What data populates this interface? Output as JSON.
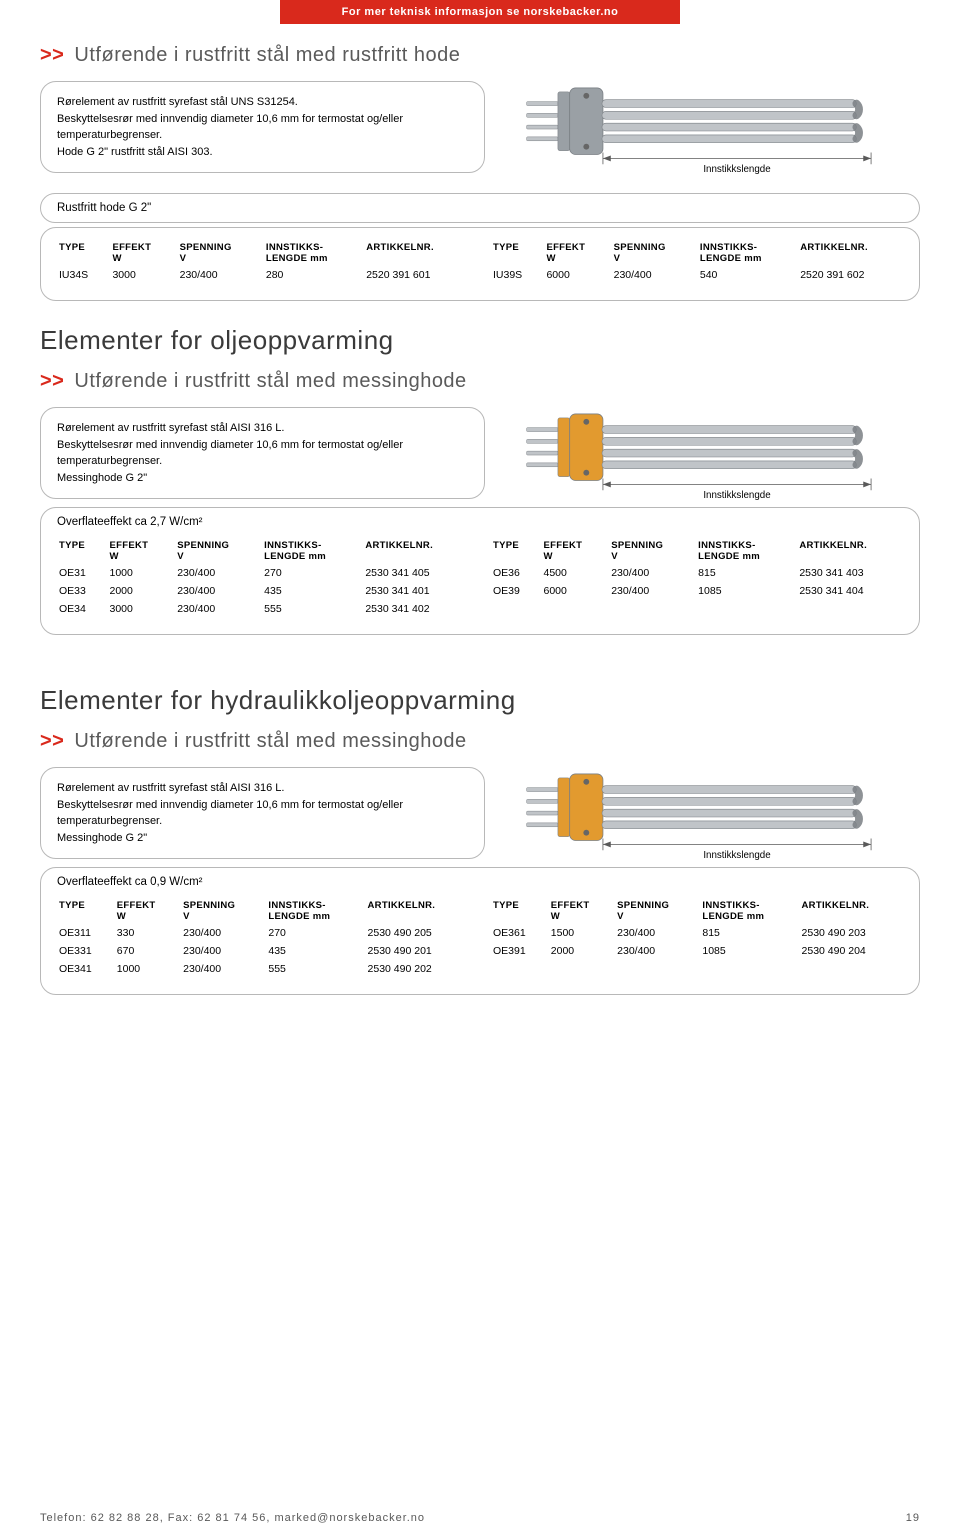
{
  "top_banner": "For mer teknisk informasjon se norskebacker.no",
  "sec1": {
    "heading": "Utførende i rustfritt stål med rustfritt hode",
    "desc1": "Rørelement av rustfritt syrefast stål UNS S31254.",
    "desc2": "Beskyttelsesrør med innvendig diameter 10,6 mm for termostat og/eller temperaturbegrenser.",
    "desc3": "Hode G 2\" rustfritt stål AISI 303.",
    "diagram_label": "Innstikkslengde",
    "sublabel": "Rustfritt hode G 2\"",
    "rows_left": [
      [
        "IU34S",
        "3000",
        "230/400",
        "280",
        "2520 391 601"
      ]
    ],
    "rows_right": [
      [
        "IU39S",
        "6000",
        "230/400",
        "540",
        "2520 391 602"
      ]
    ]
  },
  "sec2": {
    "main": "Elementer for oljeoppvarming",
    "heading": "Utførende i rustfritt stål med messinghode",
    "desc1": "Rørelement av rustfritt syrefast stål  AISI 316 L.",
    "desc2": "Beskyttelsesrør med innvendig diameter 10,6 mm for termostat og/eller temperaturbegrenser.",
    "desc3": "Messinghode G 2\"",
    "diagram_label": "Innstikkslengde",
    "sublabel": "Overflateeffekt ca 2,7 W/cm²",
    "rows_left": [
      [
        "OE31",
        "1000",
        "230/400",
        "270",
        "2530 341 405"
      ],
      [
        "OE33",
        "2000",
        "230/400",
        "435",
        "2530 341 401"
      ],
      [
        "OE34",
        "3000",
        "230/400",
        "555",
        "2530 341 402"
      ]
    ],
    "rows_right": [
      [
        "OE36",
        "4500",
        "230/400",
        "815",
        "2530 341 403"
      ],
      [
        "OE39",
        "6000",
        "230/400",
        "1085",
        "2530 341 404"
      ]
    ]
  },
  "sec3": {
    "main": "Elementer for hydraulikkoljeoppvarming",
    "heading": "Utførende i rustfritt stål med messinghode",
    "desc1": "Rørelement av rustfritt syrefast stål  AISI 316 L.",
    "desc2": "Beskyttelsesrør med innvendig diameter 10,6 mm for termostat og/eller temperaturbegrenser.",
    "desc3": "Messinghode G 2\"",
    "diagram_label": "Innstikkslengde",
    "sublabel": "Overflateeffekt ca 0,9 W/cm²",
    "rows_left": [
      [
        "OE311",
        "330",
        "230/400",
        "270",
        "2530 490 205"
      ],
      [
        "OE331",
        "670",
        "230/400",
        "435",
        "2530 490 201"
      ],
      [
        "OE341",
        "1000",
        "230/400",
        "555",
        "2530 490 202"
      ]
    ],
    "rows_right": [
      [
        "OE361",
        "1500",
        "230/400",
        "815",
        "2530 490 203"
      ],
      [
        "OE391",
        "2000",
        "230/400",
        "1085",
        "2530 490 204"
      ]
    ]
  },
  "headers": {
    "type": "TYPE",
    "effekt": "EFFEKT",
    "effekt_sub": "W",
    "spenning": "SPENNING",
    "spenning_sub": "V",
    "innstikks": "INNSTIKKS-",
    "innstikks_sub": "LENGDE mm",
    "art": "ARTIKKELNR."
  },
  "footer": {
    "contact": "Telefon: 62 82 88 28, Fax: 62 81 74 56, marked@norskebacker.no",
    "page": "19"
  },
  "diagram": {
    "flange_fill_steel": "#9aa0a5",
    "flange_fill_brass": "#e29a2f",
    "rod_fill": "#c0c4c8",
    "rod_stroke": "#7a7f84",
    "dim_color": "#5a5a5a"
  }
}
